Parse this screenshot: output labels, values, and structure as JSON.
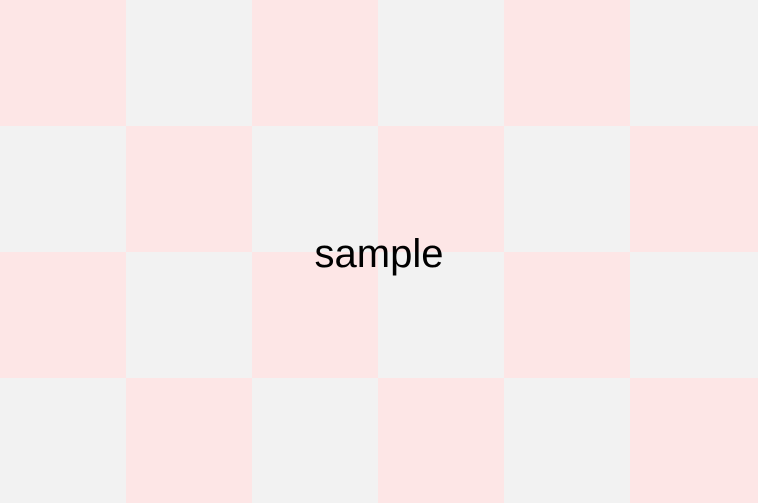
{
  "caption": "sample",
  "colors": {
    "tile_pink": "#fde6e6",
    "tile_gray": "#f2f2f2",
    "text": "#000000"
  },
  "pattern": {
    "columns": 6,
    "rows": 4,
    "first_tile": "tile_pink"
  }
}
